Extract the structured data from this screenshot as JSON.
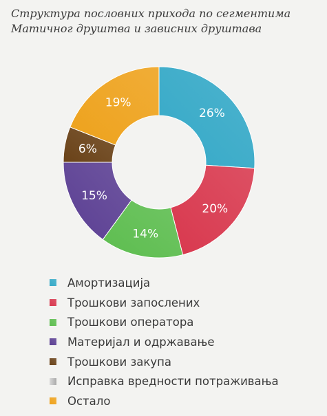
{
  "title": {
    "line1": "Структура пословних прихода по сегментима",
    "line2": "Матичног друштва и зависних друштава"
  },
  "chart_data": {
    "type": "pie",
    "donut": true,
    "title": "Структура пословних прихода по сегментима Матичног друштва и зависних друштава",
    "legend_position": "bottom",
    "slices": [
      {
        "label": "Амортизација",
        "value": 26,
        "display": "26%",
        "color": "#35a9c7"
      },
      {
        "label": "Трошкови запослених",
        "value": 20,
        "display": "20%",
        "color": "#d8384e"
      },
      {
        "label": "Трошкови оператора",
        "value": 14,
        "display": "14%",
        "color": "#5dbd4f"
      },
      {
        "label": "Материјал и одржавање",
        "value": 15,
        "display": "15%",
        "color": "#5b3f93"
      },
      {
        "label": "Трошкови закупа",
        "value": 6,
        "display": "6%",
        "color": "#6a4218"
      },
      {
        "label": "Исправка вредности потраживања",
        "value": 0,
        "display": "",
        "color": "#bdbdbd"
      },
      {
        "label": "Остало",
        "value": 19,
        "display": "19%",
        "color": "#eea21c"
      }
    ]
  }
}
